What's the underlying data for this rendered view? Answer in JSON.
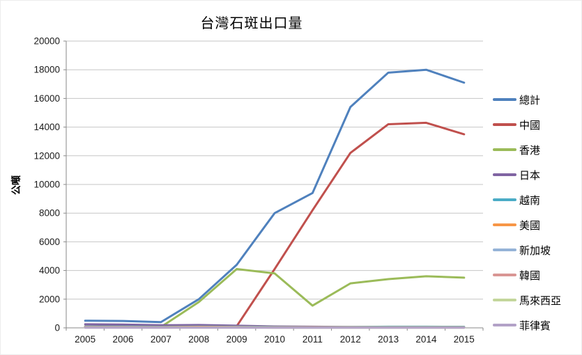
{
  "chart_data": {
    "type": "line",
    "title": "台灣石斑出口量",
    "ylabel": "公噸",
    "xlabel": "",
    "categories": [
      "2005",
      "2006",
      "2007",
      "2008",
      "2009",
      "2010",
      "2011",
      "2012",
      "2013",
      "2014",
      "2015"
    ],
    "ylim": [
      0,
      20000
    ],
    "ytick_step": 2000,
    "grid": "horizontal",
    "legend_position": "right",
    "series": [
      {
        "name": "總計",
        "color": "#4F81BD",
        "values": [
          500,
          480,
          400,
          2000,
          4400,
          8000,
          9400,
          15400,
          17800,
          18000,
          17100
        ]
      },
      {
        "name": "中國",
        "color": "#C0504D",
        "values": [
          100,
          100,
          80,
          120,
          120,
          4100,
          8200,
          12200,
          14200,
          14300,
          13500
        ]
      },
      {
        "name": "香港",
        "color": "#9BBB59",
        "values": [
          40,
          40,
          60,
          1800,
          4100,
          3800,
          1550,
          3100,
          3400,
          3600,
          3500
        ]
      },
      {
        "name": "日本",
        "color": "#8064A2",
        "values": [
          250,
          230,
          180,
          200,
          150,
          100,
          80,
          60,
          60,
          50,
          50
        ]
      },
      {
        "name": "越南",
        "color": "#4BACC6",
        "values": [
          90,
          90,
          70,
          90,
          80,
          60,
          50,
          60,
          80,
          80,
          70
        ]
      },
      {
        "name": "美國",
        "color": "#F79646",
        "values": [
          60,
          60,
          50,
          70,
          60,
          40,
          40,
          40,
          40,
          40,
          40
        ]
      },
      {
        "name": "新加坡",
        "color": "#95B3D7",
        "values": [
          40,
          40,
          30,
          40,
          40,
          30,
          30,
          30,
          30,
          30,
          30
        ]
      },
      {
        "name": "韓國",
        "color": "#D99694",
        "values": [
          30,
          30,
          20,
          30,
          30,
          20,
          20,
          20,
          20,
          20,
          20
        ]
      },
      {
        "name": "馬來西亞",
        "color": "#C3D69B",
        "values": [
          20,
          20,
          15,
          20,
          20,
          15,
          15,
          15,
          15,
          15,
          15
        ]
      },
      {
        "name": "菲律賓",
        "color": "#B3A2C7",
        "values": [
          15,
          15,
          10,
          15,
          10,
          10,
          10,
          10,
          10,
          10,
          10
        ]
      }
    ],
    "colors": {
      "gridline": "#C6C6C6",
      "axis": "#898989",
      "tick_text": "#1a1a1a"
    }
  }
}
